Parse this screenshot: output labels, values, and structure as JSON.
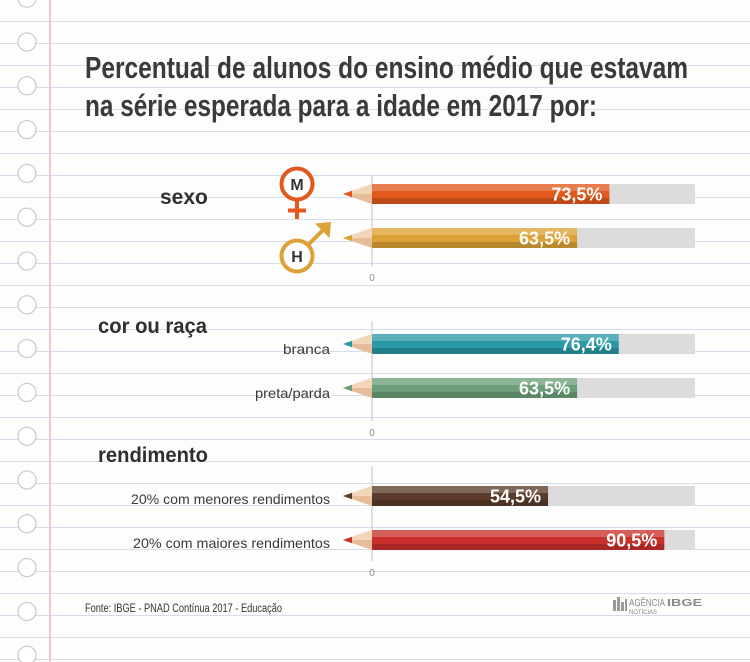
{
  "title": [
    "Percentual de alunos do ensino médio que estavam",
    "na série esperada para a idade em 2017 por:"
  ],
  "chart_data": {
    "type": "bar",
    "orientation": "horizontal",
    "xlim": [
      0,
      100
    ],
    "unit": "%",
    "axis_zero_label": "0",
    "track_color": "#dcdcdc",
    "groups": [
      {
        "name": "sexo",
        "bars": [
          {
            "category": "M",
            "value": 73.5,
            "value_label": "73,5%",
            "color": "#e2581d",
            "icon": "female-symbol-icon"
          },
          {
            "category": "H",
            "value": 63.5,
            "value_label": "63,5%",
            "color": "#dca236",
            "icon": "male-symbol-icon"
          }
        ]
      },
      {
        "name": "cor ou raça",
        "bars": [
          {
            "category": "branca",
            "value": 76.4,
            "value_label": "76,4%",
            "color": "#2a98a6"
          },
          {
            "category": "preta/parda",
            "value": 63.5,
            "value_label": "63,5%",
            "color": "#6b9f79"
          }
        ]
      },
      {
        "name": "rendimento",
        "bars": [
          {
            "category": "20% com menores rendimentos",
            "value": 54.5,
            "value_label": "54,5%",
            "color": "#5b3c2c"
          },
          {
            "category": "20% com maiores rendimentos",
            "value": 90.5,
            "value_label": "90,5%",
            "color": "#c9302c"
          }
        ]
      }
    ]
  },
  "source": "Fonte: IBGE - PNAD Contínua 2017 - Educação",
  "logo": {
    "line1_regular": "AGÊNCIA",
    "line1_bold": "IBGE",
    "line2": "NOTÍCIAS"
  }
}
